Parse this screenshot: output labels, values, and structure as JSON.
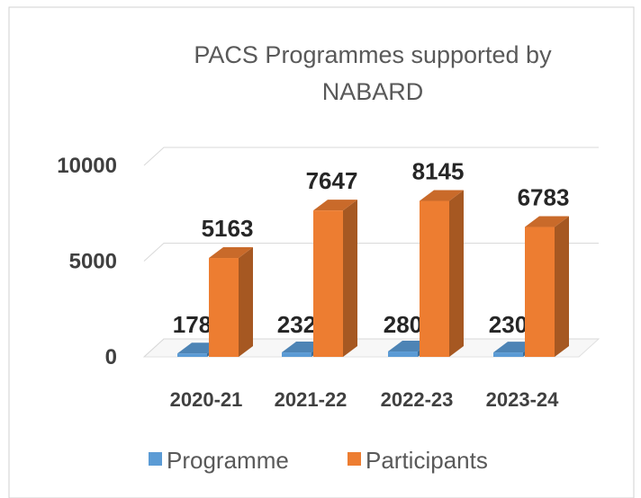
{
  "chart_data": {
    "type": "bar3d",
    "title": [
      "PACS Programmes supported by",
      "NABARD"
    ],
    "categories": [
      "2020-21",
      "2021-22",
      "2022-23",
      "2023-24"
    ],
    "series": [
      {
        "name": "Programme",
        "color": "#5b9bd5",
        "values": [
          178,
          232,
          280,
          230
        ]
      },
      {
        "name": "Participants",
        "color": "#ed7d31",
        "values": [
          5163,
          7647,
          8145,
          6783
        ]
      }
    ],
    "ylim": [
      0,
      10000
    ],
    "yticks": [
      0,
      5000,
      10000
    ],
    "grid": true,
    "legend": "bottom"
  }
}
